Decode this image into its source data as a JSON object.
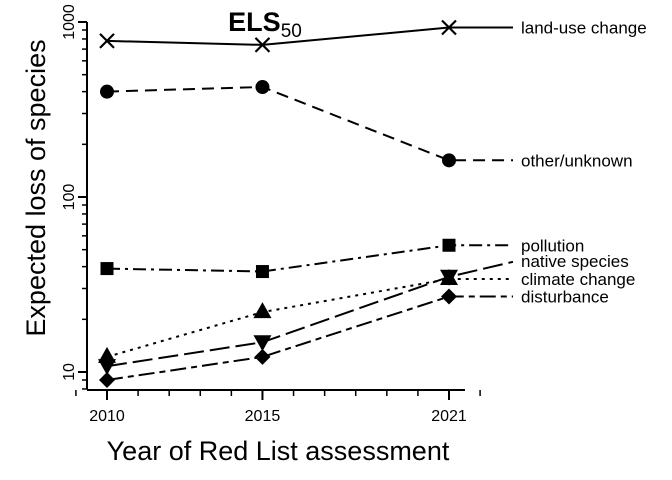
{
  "chart_data": {
    "type": "line",
    "title": "ELS",
    "title_subscript": "50",
    "xlabel": "Year of Red List assessment",
    "ylabel": "Expected loss of species",
    "x": [
      2010,
      2015,
      2021
    ],
    "x_ticks": [
      "2010",
      "2015",
      "2021"
    ],
    "xlim": [
      2010,
      2021
    ],
    "y_scale": "log",
    "ylim": [
      8,
      1000
    ],
    "y_ticks": [
      10,
      100,
      1000
    ],
    "y_tick_labels": [
      "10",
      "100",
      "1000"
    ],
    "grid": false,
    "legend": "direct labels at right end of lines",
    "series": [
      {
        "name": "land-use change",
        "values": [
          780,
          740,
          930
        ],
        "marker": "x",
        "dash": "solid"
      },
      {
        "name": "other/unknown",
        "values": [
          400,
          425,
          162
        ],
        "marker": "circle",
        "dash": "dashed"
      },
      {
        "name": "pollution",
        "values": [
          39,
          37.5,
          53
        ],
        "marker": "square",
        "dash": "dashdot"
      },
      {
        "name": "native species",
        "values": [
          10.8,
          14.8,
          35
        ],
        "marker": "triangle-down",
        "dash": "longdash"
      },
      {
        "name": "climate change",
        "values": [
          12.2,
          22,
          34
        ],
        "marker": "triangle-up",
        "dash": "dotted"
      },
      {
        "name": "disturbance",
        "values": [
          9,
          12.2,
          27
        ],
        "marker": "diamond",
        "dash": "twodash"
      }
    ]
  }
}
